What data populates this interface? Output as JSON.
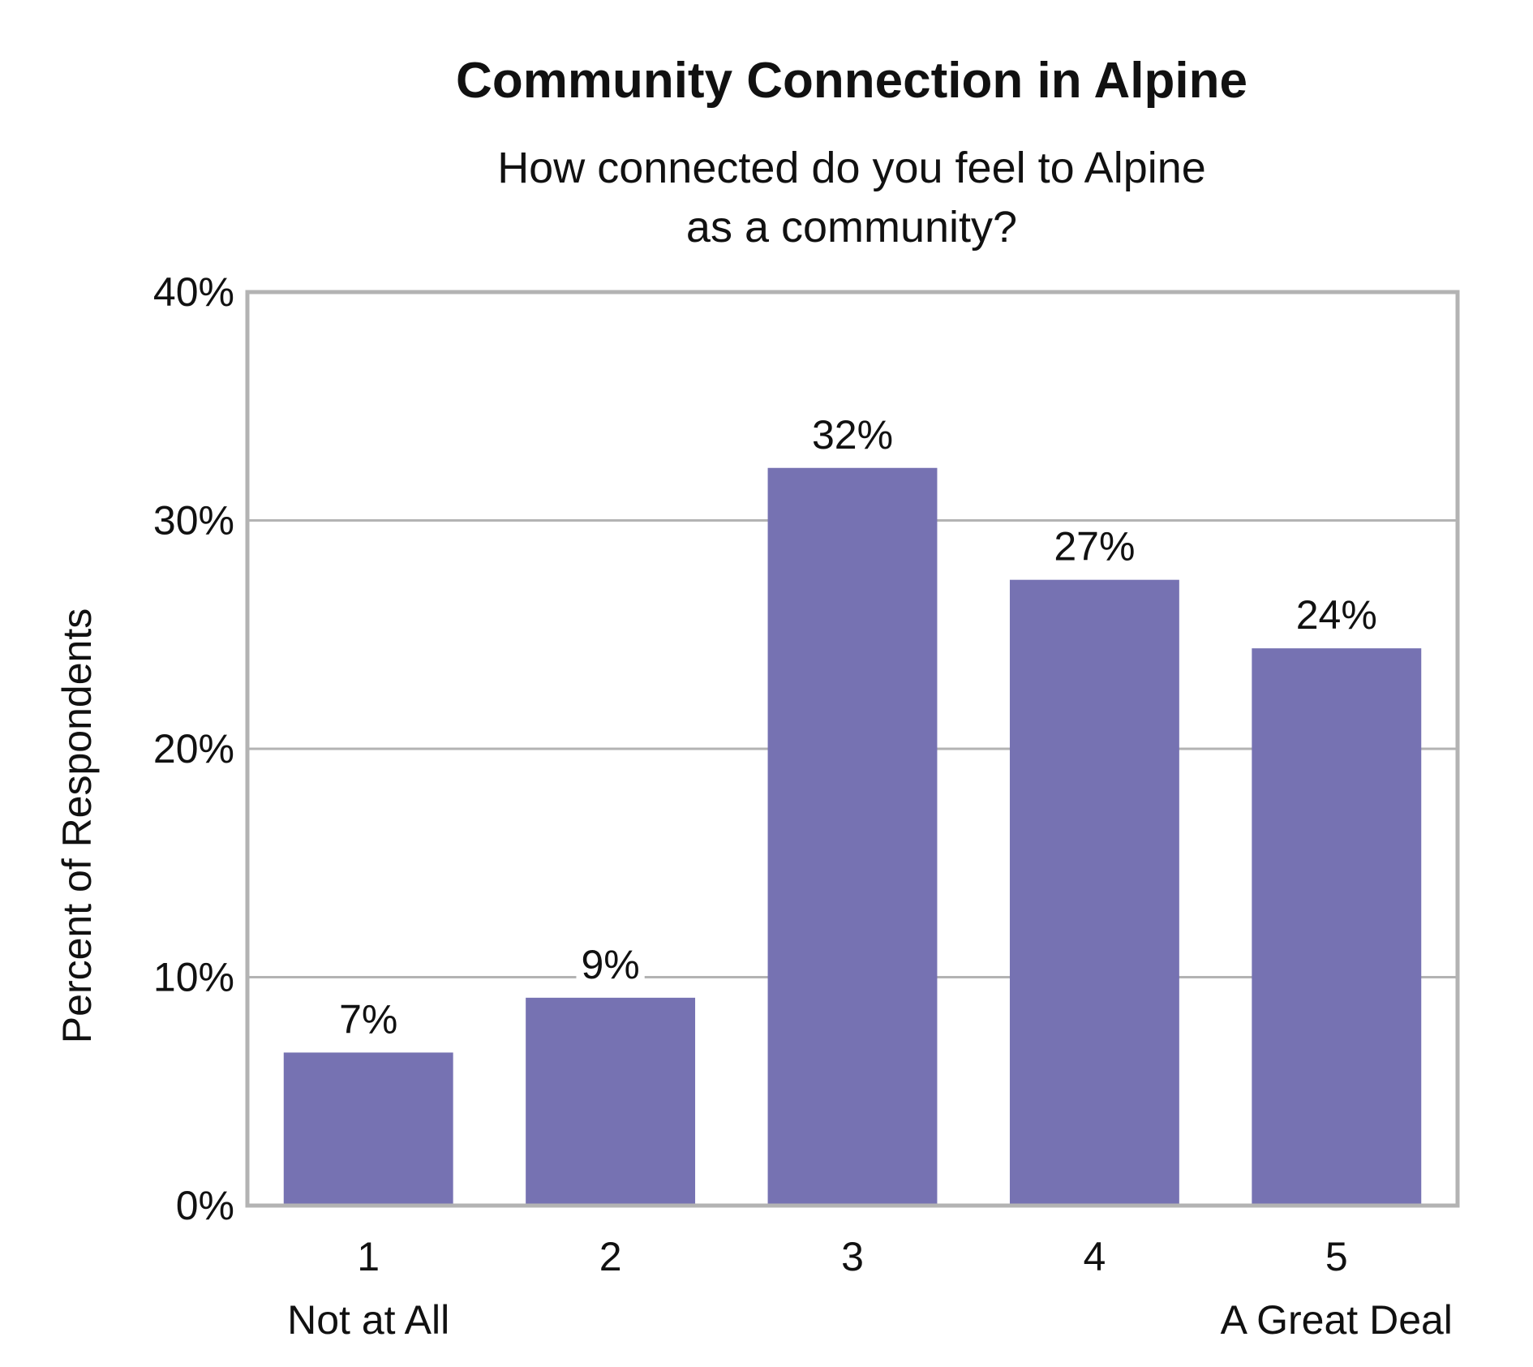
{
  "chart_data": {
    "type": "bar",
    "title": "Community Connection in Alpine",
    "subtitle_lines": [
      "How connected do you feel to Alpine",
      "as a community?"
    ],
    "ylabel": "Percent of Respondents",
    "xlabel": "",
    "categories": [
      "1",
      "2",
      "3",
      "4",
      "5"
    ],
    "category_sublabels": [
      "Not at All",
      "",
      "",
      "",
      "A Great Deal"
    ],
    "values": [
      6.7,
      9.1,
      32.3,
      27.4,
      24.4
    ],
    "value_labels": [
      "7%",
      "9%",
      "32%",
      "27%",
      "24%"
    ],
    "ylim": [
      0,
      40
    ],
    "yticks": [
      0,
      10,
      20,
      30,
      40
    ],
    "ytick_labels": [
      "0%",
      "10%",
      "20%",
      "30%",
      "40%"
    ],
    "grid": true,
    "legend": "none",
    "colors": {
      "bar": "#7672b2",
      "grid": "#b3b3b3",
      "frame": "#b3b3b3",
      "text": "#111111"
    }
  }
}
